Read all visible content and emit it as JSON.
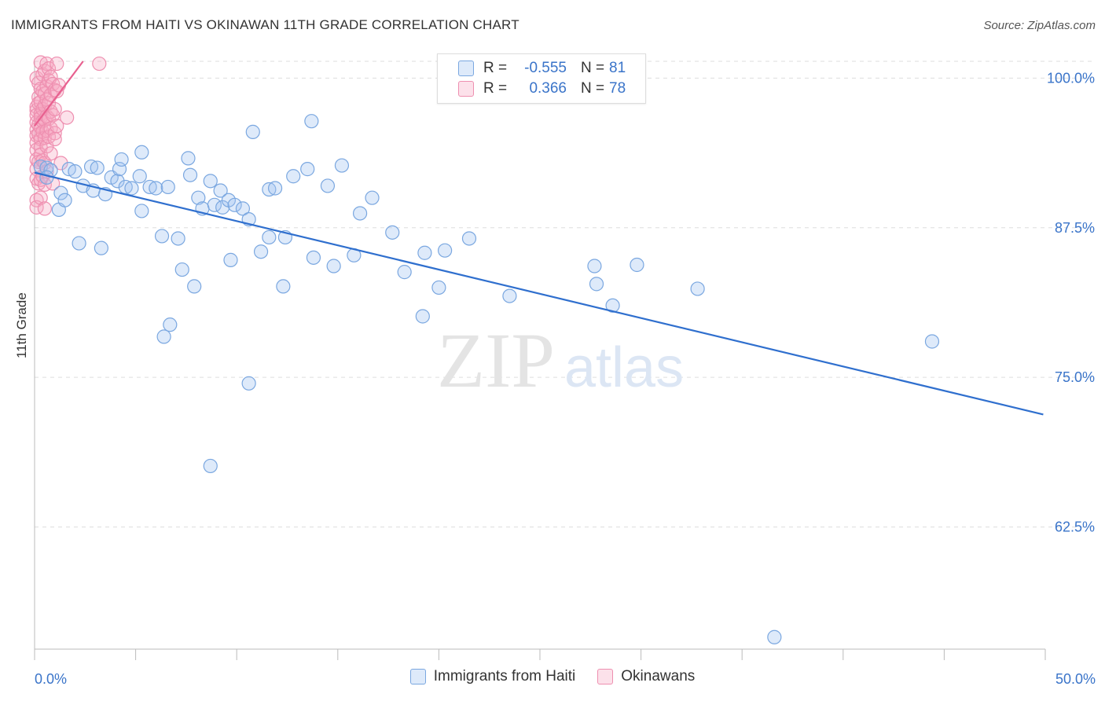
{
  "header": {
    "title": "IMMIGRANTS FROM HAITI VS OKINAWAN 11TH GRADE CORRELATION CHART",
    "source": "Source: ZipAtlas.com"
  },
  "watermark": {
    "zip": "ZIP",
    "atlas": "atlas"
  },
  "legend": {
    "rows": [
      {
        "r_label": "R =",
        "r_value": "-0.555",
        "n_label": "N =",
        "n_value": "81",
        "color": "#a9c7f0"
      },
      {
        "r_label": "R =",
        "r_value": "0.366",
        "n_label": "N =",
        "n_value": "78",
        "color": "#f5b3c8"
      }
    ]
  },
  "bottom_legend": {
    "items": [
      {
        "label": "Immigrants from Haiti",
        "color": "#a9c7f0"
      },
      {
        "label": "Okinawans",
        "color": "#f5b3c8"
      }
    ]
  },
  "colors": {
    "blue_fill": "rgba(160,196,240,0.35)",
    "blue_stroke": "#7aa7e0",
    "blue_line": "#2f6fce",
    "pink_fill": "rgba(245,170,195,0.35)",
    "pink_stroke": "#ee8fb0",
    "pink_line": "#e8608f",
    "grid": "#dddddd",
    "axis_text": "#3a74c9"
  },
  "chart_data": {
    "type": "scatter",
    "title": "IMMIGRANTS FROM HAITI VS OKINAWAN 11TH GRADE CORRELATION CHART",
    "xlabel": "",
    "ylabel": "11th Grade",
    "xlim": [
      0,
      50
    ],
    "ylim": [
      52.3,
      101.4
    ],
    "x_tick_labels": [
      "0.0%",
      "50.0%"
    ],
    "y_ticks": [
      62.5,
      75.0,
      87.5,
      100.0
    ],
    "y_tick_labels": [
      "62.5%",
      "75.0%",
      "87.5%",
      "100.0%"
    ],
    "grid": true,
    "series": [
      {
        "name": "Immigrants from Haiti",
        "r": -0.555,
        "n": 81,
        "trend": {
          "x": [
            0.0,
            49.9
          ],
          "y": [
            92.1,
            71.9
          ]
        },
        "points": [
          [
            0.3,
            92.6
          ],
          [
            0.6,
            92.5
          ],
          [
            0.8,
            92.3
          ],
          [
            0.6,
            91.7
          ],
          [
            1.2,
            89.0
          ],
          [
            1.3,
            90.4
          ],
          [
            1.5,
            89.8
          ],
          [
            1.7,
            92.4
          ],
          [
            2.0,
            92.2
          ],
          [
            2.2,
            86.2
          ],
          [
            2.4,
            91.0
          ],
          [
            2.8,
            92.6
          ],
          [
            2.9,
            90.6
          ],
          [
            3.1,
            92.5
          ],
          [
            3.3,
            85.8
          ],
          [
            3.5,
            90.3
          ],
          [
            3.8,
            91.7
          ],
          [
            4.1,
            91.4
          ],
          [
            4.2,
            92.4
          ],
          [
            4.3,
            93.2
          ],
          [
            4.5,
            90.9
          ],
          [
            4.8,
            90.8
          ],
          [
            5.2,
            91.8
          ],
          [
            5.3,
            93.8
          ],
          [
            5.3,
            88.9
          ],
          [
            5.7,
            90.9
          ],
          [
            6.0,
            90.8
          ],
          [
            6.3,
            86.8
          ],
          [
            6.4,
            78.4
          ],
          [
            6.6,
            90.9
          ],
          [
            6.7,
            79.4
          ],
          [
            7.1,
            86.6
          ],
          [
            7.3,
            84.0
          ],
          [
            7.6,
            93.3
          ],
          [
            7.7,
            91.9
          ],
          [
            7.9,
            82.6
          ],
          [
            8.1,
            90.0
          ],
          [
            8.3,
            89.1
          ],
          [
            8.7,
            67.6
          ],
          [
            8.7,
            91.4
          ],
          [
            8.9,
            89.4
          ],
          [
            9.2,
            90.6
          ],
          [
            9.3,
            89.2
          ],
          [
            9.6,
            89.8
          ],
          [
            9.7,
            84.8
          ],
          [
            9.9,
            89.4
          ],
          [
            10.3,
            89.1
          ],
          [
            10.6,
            88.2
          ],
          [
            10.6,
            74.5
          ],
          [
            10.8,
            95.5
          ],
          [
            11.2,
            85.5
          ],
          [
            11.6,
            86.7
          ],
          [
            11.6,
            90.7
          ],
          [
            11.9,
            90.8
          ],
          [
            12.3,
            82.6
          ],
          [
            12.4,
            86.7
          ],
          [
            12.8,
            91.8
          ],
          [
            13.5,
            92.4
          ],
          [
            13.7,
            96.4
          ],
          [
            13.8,
            85.0
          ],
          [
            14.5,
            91.0
          ],
          [
            14.8,
            84.3
          ],
          [
            15.2,
            92.7
          ],
          [
            15.8,
            85.2
          ],
          [
            16.1,
            88.7
          ],
          [
            16.7,
            90.0
          ],
          [
            17.7,
            87.1
          ],
          [
            18.3,
            83.8
          ],
          [
            19.2,
            80.1
          ],
          [
            19.3,
            85.4
          ],
          [
            20.0,
            82.5
          ],
          [
            20.3,
            85.6
          ],
          [
            21.5,
            86.6
          ],
          [
            23.5,
            81.8
          ],
          [
            27.7,
            84.3
          ],
          [
            27.8,
            82.8
          ],
          [
            28.6,
            81.0
          ],
          [
            29.8,
            84.4
          ],
          [
            32.8,
            82.4
          ],
          [
            36.6,
            53.3
          ],
          [
            44.4,
            78.0
          ]
        ]
      },
      {
        "name": "Okinawans",
        "r": 0.366,
        "n": 78,
        "trend": {
          "x": [
            0.0,
            2.4
          ],
          "y": [
            96.0,
            101.4
          ]
        },
        "points": [
          [
            0.1,
            100.0
          ],
          [
            0.1,
            97.6
          ],
          [
            0.1,
            97.3
          ],
          [
            0.1,
            96.9
          ],
          [
            0.1,
            96.3
          ],
          [
            0.1,
            95.7
          ],
          [
            0.1,
            95.2
          ],
          [
            0.1,
            94.6
          ],
          [
            0.1,
            94.0
          ],
          [
            0.1,
            93.2
          ],
          [
            0.1,
            92.4
          ],
          [
            0.1,
            91.6
          ],
          [
            0.1,
            89.8
          ],
          [
            0.1,
            89.2
          ],
          [
            0.2,
            99.6
          ],
          [
            0.2,
            98.4
          ],
          [
            0.2,
            97.9
          ],
          [
            0.2,
            96.1
          ],
          [
            0.2,
            95.3
          ],
          [
            0.2,
            93.0
          ],
          [
            0.2,
            91.2
          ],
          [
            0.3,
            101.3
          ],
          [
            0.3,
            99.1
          ],
          [
            0.3,
            98.0
          ],
          [
            0.3,
            97.0
          ],
          [
            0.3,
            96.7
          ],
          [
            0.3,
            95.9
          ],
          [
            0.3,
            94.9
          ],
          [
            0.3,
            94.2
          ],
          [
            0.3,
            93.6
          ],
          [
            0.3,
            91.5
          ],
          [
            0.3,
            90.0
          ],
          [
            0.4,
            100.3
          ],
          [
            0.4,
            98.9
          ],
          [
            0.4,
            97.4
          ],
          [
            0.4,
            96.4
          ],
          [
            0.4,
            95.5
          ],
          [
            0.4,
            93.1
          ],
          [
            0.4,
            91.8
          ],
          [
            0.5,
            100.6
          ],
          [
            0.5,
            98.7
          ],
          [
            0.5,
            97.7
          ],
          [
            0.5,
            96.5
          ],
          [
            0.5,
            95.0
          ],
          [
            0.5,
            92.9
          ],
          [
            0.5,
            91.1
          ],
          [
            0.5,
            89.1
          ],
          [
            0.6,
            101.2
          ],
          [
            0.6,
            99.3
          ],
          [
            0.6,
            98.2
          ],
          [
            0.6,
            96.8
          ],
          [
            0.6,
            95.6
          ],
          [
            0.6,
            94.3
          ],
          [
            0.6,
            92.2
          ],
          [
            0.7,
            100.8
          ],
          [
            0.7,
            99.8
          ],
          [
            0.7,
            97.9
          ],
          [
            0.7,
            96.6
          ],
          [
            0.7,
            95.1
          ],
          [
            0.8,
            100.1
          ],
          [
            0.8,
            98.6
          ],
          [
            0.8,
            97.2
          ],
          [
            0.8,
            95.8
          ],
          [
            0.8,
            93.7
          ],
          [
            0.9,
            99.5
          ],
          [
            0.9,
            96.9
          ],
          [
            0.9,
            91.2
          ],
          [
            1.0,
            99.0
          ],
          [
            1.0,
            97.4
          ],
          [
            1.0,
            95.4
          ],
          [
            1.0,
            94.9
          ],
          [
            1.1,
            101.2
          ],
          [
            1.1,
            98.9
          ],
          [
            1.1,
            96.0
          ],
          [
            1.2,
            99.4
          ],
          [
            1.3,
            92.9
          ],
          [
            1.6,
            96.7
          ],
          [
            3.2,
            101.2
          ]
        ]
      }
    ]
  }
}
